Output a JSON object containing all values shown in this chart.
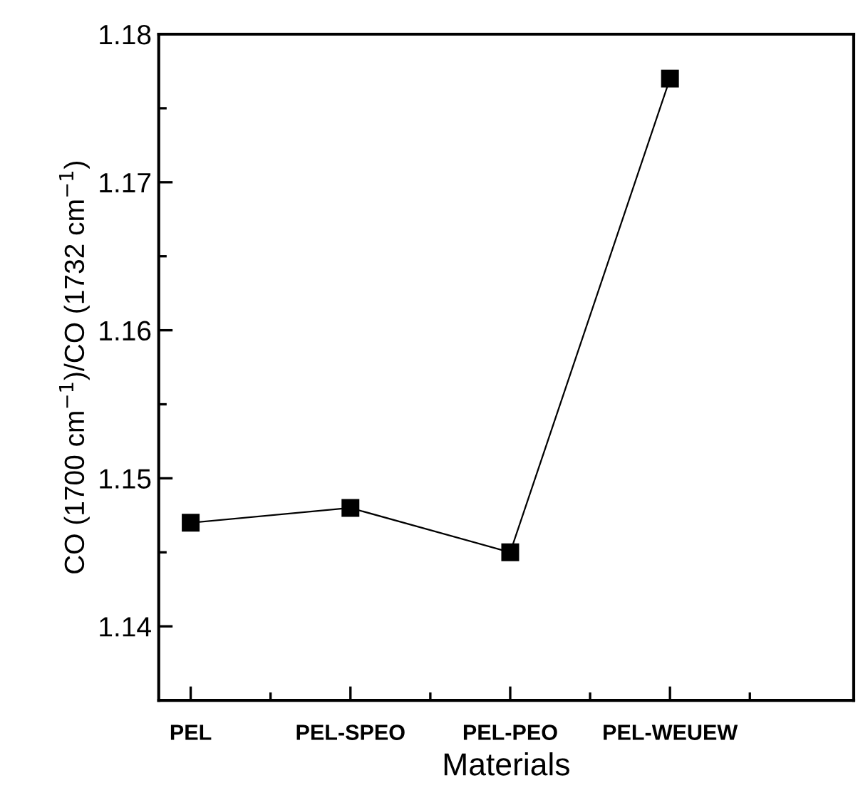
{
  "chart_data": {
    "type": "line",
    "xlabel": "Materials",
    "ylabel": "CO (1700 cm$^{−1}$)/CO (1732 cm$^{−1}$)",
    "categories": [
      "PEL",
      "PEL-SPEO",
      "PEL-PEO",
      "PEL-WEUEW"
    ],
    "series": [
      {
        "color": "#000000",
        "values": [
          1.147,
          1.148,
          1.145,
          1.177
        ]
      }
    ],
    "ylim": [
      1.135,
      1.18
    ],
    "yticks": [
      1.14,
      1.15,
      1.16,
      1.17,
      1.18
    ],
    "marker": "square",
    "line_style": "solid"
  }
}
